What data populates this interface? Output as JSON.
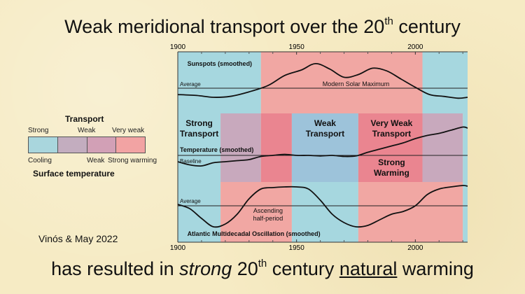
{
  "slide": {
    "title_main": "Weak meridional transport over the 20",
    "title_sup": "th",
    "title_tail": " century",
    "bottom_pre": "has resulted in ",
    "bottom_italic": "strong",
    "bottom_num": " 20",
    "bottom_sup": "th",
    "bottom_mid": " century ",
    "bottom_underline": "natural",
    "bottom_tail": " warming",
    "citation": "Vinós & May 2022"
  },
  "legend": {
    "transport_title": "Transport",
    "transport_labels": [
      "Strong",
      "Weak",
      "Very weak"
    ],
    "temperature_labels": [
      "Cooling",
      "Weak",
      "Strong warming"
    ],
    "temperature_title": "Surface temperature",
    "colors": [
      "#a9d6dd",
      "#c3adbf",
      "#d2a0b6",
      "#f2a3a3"
    ]
  },
  "chart_data": {
    "type": "line",
    "x_axis": {
      "min": 1900,
      "max": 2022,
      "ticks": [
        1900,
        1950,
        2000
      ]
    },
    "colors": {
      "blue": "#a6d7df",
      "mauve": "#c8a9bd",
      "red": "#f1a7a3",
      "strong_red": "#ea8590",
      "midblue": "#9dc3da"
    },
    "sunspots": {
      "label": "Sunspots (smoothed)",
      "average_label": "Average",
      "annotation": "Modern Solar Maximum",
      "background": [
        {
          "from": 1900,
          "to": 1935,
          "color": "blue"
        },
        {
          "from": 1935,
          "to": 2003,
          "color": "red"
        },
        {
          "from": 2003,
          "to": 2022,
          "color": "blue"
        }
      ],
      "x": [
        1900,
        1908,
        1915,
        1922,
        1930,
        1938,
        1945,
        1952,
        1958,
        1964,
        1970,
        1976,
        1982,
        1988,
        1994,
        2000,
        2006,
        2012,
        2018,
        2022
      ],
      "y": [
        -0.7,
        -0.8,
        -1.0,
        -0.9,
        -0.4,
        0.3,
        1.4,
        2.0,
        2.7,
        2.1,
        1.2,
        1.5,
        2.2,
        1.9,
        1.0,
        0.1,
        -0.7,
        -0.9,
        -1.1,
        -1.0
      ]
    },
    "temperature": {
      "label": "Temperature (smoothed)",
      "baseline_label": "Baseline",
      "background": [
        {
          "from": 1900,
          "to": 1918,
          "color": "blue"
        },
        {
          "from": 1918,
          "to": 1935,
          "color": "mauve"
        },
        {
          "from": 1935,
          "to": 1948,
          "color": "strong_red"
        },
        {
          "from": 1948,
          "to": 1976,
          "color": "midblue"
        },
        {
          "from": 1976,
          "to": 2003,
          "color": "strong_red"
        },
        {
          "from": 2003,
          "to": 2020,
          "color": "mauve"
        },
        {
          "from": 2020,
          "to": 2022,
          "color": "blue"
        }
      ],
      "regions": [
        {
          "x": 1909,
          "lines": [
            "Strong",
            "Transport"
          ]
        },
        {
          "x": 1962,
          "lines": [
            "Weak",
            "Transport"
          ]
        },
        {
          "x": 1990,
          "lines": [
            "Very Weak",
            "Transport"
          ]
        },
        {
          "x": 1990,
          "lines": [
            "Strong",
            "Warming"
          ]
        }
      ],
      "x": [
        1900,
        1905,
        1910,
        1915,
        1920,
        1925,
        1930,
        1935,
        1940,
        1945,
        1950,
        1955,
        1960,
        1965,
        1970,
        1975,
        1980,
        1985,
        1990,
        1995,
        2000,
        2005,
        2010,
        2015,
        2020,
        2022
      ],
      "y": [
        -0.6,
        -0.9,
        -1.0,
        -0.7,
        -0.6,
        -0.5,
        -0.4,
        -0.1,
        0.0,
        0.1,
        0.0,
        0.0,
        -0.05,
        0.0,
        -0.1,
        -0.05,
        0.3,
        0.6,
        0.9,
        1.2,
        1.6,
        1.9,
        2.1,
        2.4,
        2.7,
        2.6
      ]
    },
    "amo": {
      "label": "Atlantic Multidecadal Oscillation (smoothed)",
      "average_label": "Average",
      "annotation_lines": [
        "Ascending",
        "half-period"
      ],
      "background": [
        {
          "from": 1900,
          "to": 1918,
          "color": "blue"
        },
        {
          "from": 1918,
          "to": 1948,
          "color": "red"
        },
        {
          "from": 1948,
          "to": 1976,
          "color": "blue"
        },
        {
          "from": 1976,
          "to": 2020,
          "color": "red"
        },
        {
          "from": 2020,
          "to": 2022,
          "color": "blue"
        }
      ],
      "x": [
        1900,
        1905,
        1910,
        1915,
        1920,
        1925,
        1930,
        1935,
        1940,
        1945,
        1950,
        1955,
        1960,
        1965,
        1970,
        1975,
        1980,
        1985,
        1990,
        1995,
        2000,
        2005,
        2010,
        2015,
        2020,
        2022
      ],
      "y": [
        0.1,
        -0.2,
        -0.9,
        -1.5,
        -1.3,
        -0.6,
        0.5,
        1.2,
        1.3,
        1.35,
        1.35,
        1.2,
        0.4,
        -0.6,
        -1.2,
        -1.5,
        -1.4,
        -1.0,
        -0.6,
        -0.4,
        0.0,
        0.8,
        1.2,
        1.35,
        1.45,
        1.4
      ]
    }
  }
}
